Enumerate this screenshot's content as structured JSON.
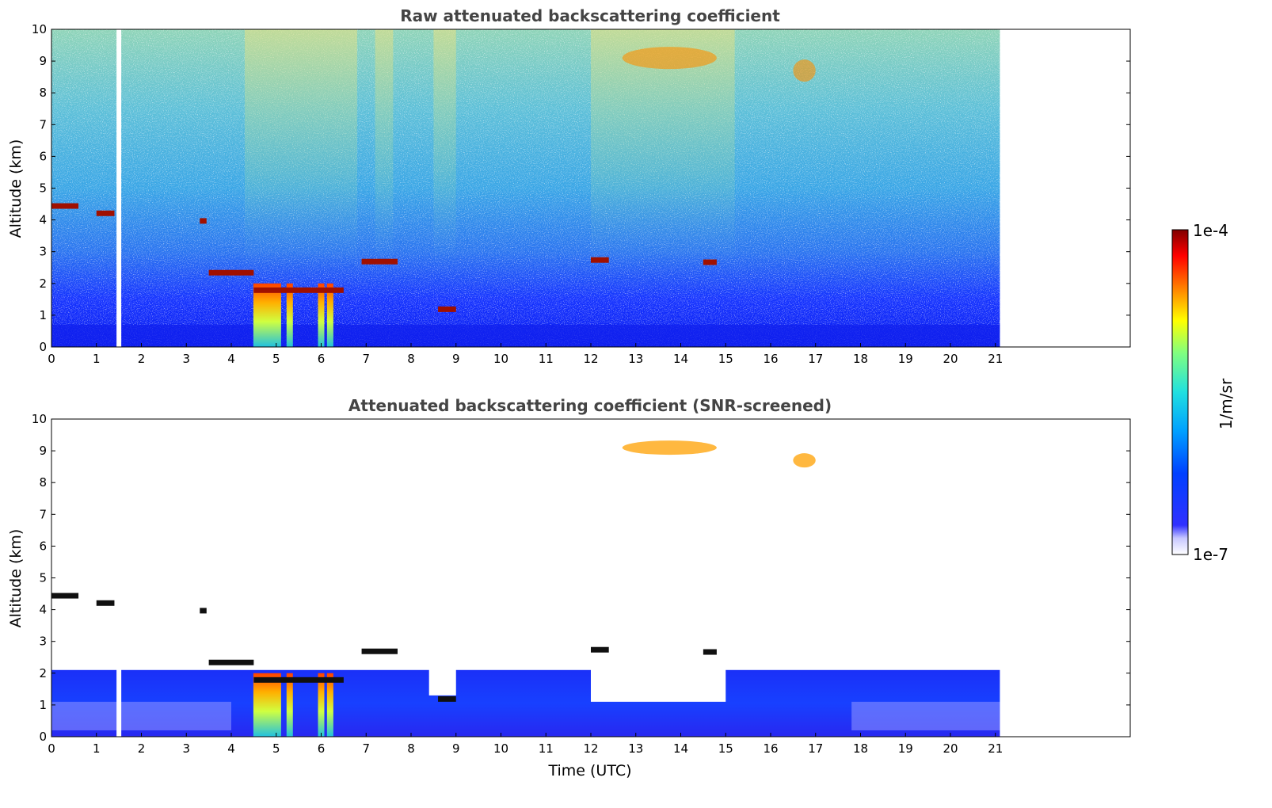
{
  "chart_data": [
    {
      "type": "heatmap",
      "title": "Raw attenuated backscattering coefficient",
      "xlabel": "",
      "ylabel": "Altitude (km)",
      "xlim": [
        0,
        24
      ],
      "ylim": [
        0,
        10
      ],
      "xticks": [
        "0",
        "1",
        "2",
        "3",
        "4",
        "5",
        "6",
        "7",
        "8",
        "9",
        "10",
        "11",
        "12",
        "13",
        "14",
        "15",
        "16",
        "17",
        "18",
        "19",
        "20",
        "21"
      ],
      "yticks": [
        "0",
        "1",
        "2",
        "3",
        "4",
        "5",
        "6",
        "7",
        "8",
        "9",
        "10"
      ],
      "data_end_time": 21.1,
      "gap_time": 1.5,
      "cloud_layers": [
        {
          "t0": 0.0,
          "t1": 0.6,
          "alt": 4.45
        },
        {
          "t0": 1.0,
          "t1": 1.4,
          "alt": 4.22
        },
        {
          "t0": 3.3,
          "t1": 3.45,
          "alt": 3.98
        },
        {
          "t0": 3.5,
          "t1": 4.5,
          "alt": 2.35
        },
        {
          "t0": 4.5,
          "t1": 6.5,
          "alt": 1.8
        },
        {
          "t0": 6.9,
          "t1": 7.7,
          "alt": 2.7
        },
        {
          "t0": 8.6,
          "t1": 9.0,
          "alt": 1.2
        },
        {
          "t0": 12.0,
          "t1": 12.4,
          "alt": 2.75
        },
        {
          "t0": 14.5,
          "t1": 14.8,
          "alt": 2.68
        }
      ],
      "cirrus": [
        {
          "t0": 12.7,
          "t1": 14.8,
          "alt": 9.1
        },
        {
          "t0": 16.5,
          "t1": 17.0,
          "alt": 8.7
        }
      ],
      "precip_shafts": [
        4.65,
        4.95,
        5.3,
        6.0,
        6.2
      ]
    },
    {
      "type": "heatmap",
      "title": "Attenuated backscattering coefficient (SNR-screened)",
      "xlabel": "Time (UTC)",
      "ylabel": "Altitude (km)",
      "xlim": [
        0,
        24
      ],
      "ylim": [
        0,
        10
      ],
      "xticks": [
        "0",
        "1",
        "2",
        "3",
        "4",
        "5",
        "6",
        "7",
        "8",
        "9",
        "10",
        "11",
        "12",
        "13",
        "14",
        "15",
        "16",
        "17",
        "18",
        "19",
        "20",
        "21"
      ],
      "yticks": [
        "0",
        "1",
        "2",
        "3",
        "4",
        "5",
        "6",
        "7",
        "8",
        "9",
        "10"
      ],
      "boundary_layer_top_km": 1.8
    }
  ],
  "colorbar": {
    "label": "1/m/sr",
    "max_label": "1e-4",
    "min_label": "1e-7",
    "scale": "log",
    "range": [
      1e-07,
      0.0001
    ],
    "colors": [
      "#e8e8ff",
      "#3030ff",
      "#0040ff",
      "#00a0ff",
      "#20e0e0",
      "#80ff80",
      "#ffff00",
      "#ff8000",
      "#ff0000",
      "#800000"
    ]
  }
}
